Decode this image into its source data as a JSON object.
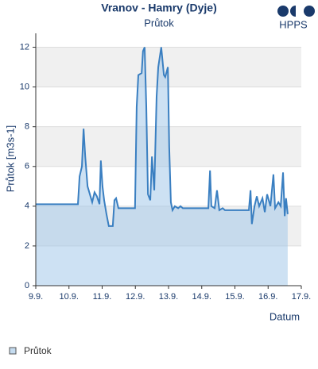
{
  "chart_data": {
    "type": "area",
    "title": "Vranov - Hamry (Dyje)",
    "subtitle": "Průtok",
    "brand": "HPPS",
    "y_label": "Průtok [m3s-1]",
    "x_label": "Datum",
    "xlim": [
      9,
      17
    ],
    "ylim": [
      0,
      12.7
    ],
    "xticks": [
      {
        "value": 9,
        "label": "9.9."
      },
      {
        "value": 10,
        "label": "10.9."
      },
      {
        "value": 11,
        "label": "11.9."
      },
      {
        "value": 12,
        "label": "12.9."
      },
      {
        "value": 13,
        "label": "13.9."
      },
      {
        "value": 14,
        "label": "14.9."
      },
      {
        "value": 15,
        "label": "15.9."
      },
      {
        "value": 16,
        "label": "16.9."
      },
      {
        "value": 17,
        "label": "17.9."
      }
    ],
    "yticks": [
      0,
      2,
      4,
      6,
      8,
      10,
      12
    ],
    "grid": true,
    "series": [
      {
        "name": "Průtok",
        "color": "#3a7fc1",
        "x": [
          9.0,
          10.27,
          10.32,
          10.39,
          10.44,
          10.49,
          10.56,
          10.63,
          10.7,
          10.77,
          10.84,
          10.92,
          10.96,
          11.01,
          11.06,
          11.13,
          11.2,
          11.32,
          11.37,
          11.42,
          11.49,
          11.99,
          12.04,
          12.09,
          12.19,
          12.23,
          12.28,
          12.33,
          12.38,
          12.45,
          12.5,
          12.57,
          12.64,
          12.69,
          12.78,
          12.86,
          12.9,
          12.98,
          13.02,
          13.07,
          13.12,
          13.19,
          13.29,
          13.36,
          13.43,
          14.2,
          14.25,
          14.29,
          14.39,
          14.46,
          14.53,
          14.63,
          14.7,
          15.42,
          15.47,
          15.51,
          15.59,
          15.66,
          15.73,
          15.83,
          15.9,
          15.97,
          16.07,
          16.16,
          16.21,
          16.31,
          16.38,
          16.45,
          16.5,
          16.54,
          16.59
        ],
        "values": [
          4.1,
          4.1,
          5.5,
          6.0,
          7.9,
          6.5,
          5.0,
          4.6,
          4.2,
          4.7,
          4.5,
          4.1,
          6.3,
          5.0,
          4.3,
          3.6,
          3.0,
          3.0,
          4.3,
          4.4,
          3.9,
          3.9,
          9.0,
          10.6,
          10.7,
          11.8,
          12.0,
          9.0,
          4.6,
          4.3,
          6.5,
          4.8,
          9.5,
          11.0,
          12.0,
          10.6,
          10.5,
          11.0,
          7.0,
          4.2,
          3.8,
          4.0,
          3.9,
          4.0,
          3.9,
          3.9,
          5.8,
          4.0,
          3.9,
          4.8,
          3.8,
          3.9,
          3.8,
          3.8,
          4.8,
          3.1,
          4.0,
          4.5,
          4.0,
          4.4,
          3.7,
          4.6,
          4.0,
          5.6,
          3.9,
          4.2,
          4.0,
          5.7,
          3.5,
          4.4,
          3.6
        ]
      }
    ]
  }
}
